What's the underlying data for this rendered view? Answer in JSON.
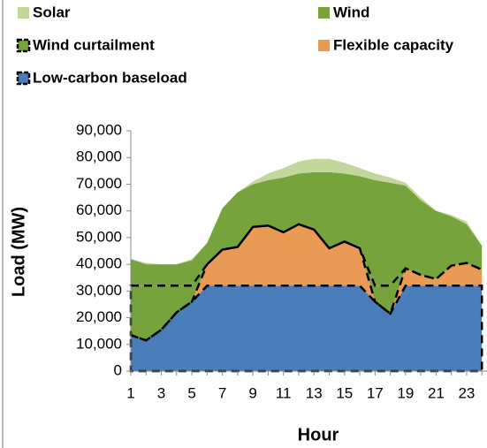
{
  "chart_data": {
    "type": "stacked_area",
    "y_label": "Load (MW)",
    "x_label": "Hour",
    "categories": [
      1,
      null,
      3,
      null,
      5,
      null,
      7,
      null,
      9,
      null,
      11,
      null,
      13,
      null,
      15,
      null,
      17,
      null,
      19,
      null,
      21,
      null,
      23,
      null
    ],
    "series": [
      {
        "name": "Solar",
        "color": "#c3d69b",
        "values": [
          0,
          500,
          0,
          0,
          500,
          0,
          0,
          0,
          1000,
          2500,
          3500,
          4500,
          5000,
          5000,
          4000,
          3000,
          2500,
          2000,
          1000,
          1000,
          0,
          500,
          1000,
          0
        ]
      },
      {
        "name": "Wind",
        "color": "#77a33c",
        "values": [
          10000,
          8000,
          8000,
          8000,
          9500,
          8000,
          15500,
          20500,
          16000,
          17000,
          20500,
          19000,
          21500,
          28500,
          25500,
          27000,
          39500,
          38500,
          31000,
          28000,
          25500,
          18500,
          14500,
          9000
        ]
      },
      {
        "name": "Wind curtailment",
        "color": "#77a33c",
        "dashed": true,
        "values": [
          18500,
          20500,
          16500,
          10000,
          6000,
          0,
          0,
          0,
          0,
          0,
          0,
          0,
          0,
          0,
          0,
          0,
          6000,
          10500,
          0,
          0,
          0,
          0,
          0,
          0
        ]
      },
      {
        "name": "Flexible capacity",
        "color": "#eb9a55",
        "values": [
          0,
          0,
          0,
          0,
          0,
          8000,
          13500,
          14500,
          22000,
          22500,
          20000,
          23000,
          21000,
          14000,
          16500,
          14000,
          0,
          0,
          6500,
          4000,
          2500,
          7500,
          8500,
          6000
        ]
      },
      {
        "name": "Low-carbon baseload",
        "color": "#4a7ebb",
        "dashed": true,
        "values": [
          13500,
          11500,
          15500,
          22000,
          26000,
          32000,
          32000,
          32000,
          32000,
          32000,
          32000,
          32000,
          32000,
          32000,
          32000,
          32000,
          26000,
          21500,
          32000,
          32000,
          32000,
          32000,
          32000,
          32000
        ]
      }
    ],
    "ylim": [
      0,
      90000
    ],
    "yticks": [
      0,
      {
        "value": 10000,
        "label": "10,000"
      },
      {
        "value": 20000,
        "label": "20,000"
      },
      {
        "value": 30000,
        "label": "30,000"
      },
      {
        "value": 40000,
        "label": "40,000"
      },
      {
        "value": 50000,
        "label": "50,000"
      },
      {
        "value": 60000,
        "label": "60,000"
      },
      {
        "value": 70000,
        "label": "70,000"
      },
      {
        "value": 80000,
        "label": "80,000"
      },
      {
        "value": 90000,
        "label": "90,000"
      }
    ],
    "legend": "top-left"
  }
}
